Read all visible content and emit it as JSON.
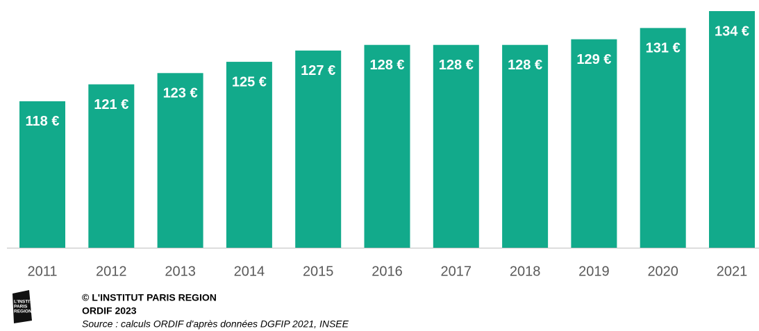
{
  "chart_data": {
    "type": "bar",
    "categories": [
      "2011",
      "2012",
      "2013",
      "2014",
      "2015",
      "2016",
      "2017",
      "2018",
      "2019",
      "2020",
      "2021"
    ],
    "values": [
      118,
      121,
      123,
      125,
      127,
      128,
      128,
      128,
      129,
      131,
      134
    ],
    "value_labels": [
      "118 €",
      "121 €",
      "123 €",
      "125 €",
      "127 €",
      "128 €",
      "128 €",
      "128 €",
      "129 €",
      "131 €",
      "134 €"
    ],
    "color": "#12aa8b",
    "ylim": [
      92,
      134
    ]
  },
  "footer": {
    "logo": [
      "L'INSTITUT",
      "PARIS",
      "REGION"
    ],
    "copyright": "© L'INSTITUT PARIS REGION",
    "producer": "ORDIF 2023",
    "source": "Source : calculs ORDIF d'après données DGFIP 2021, INSEE"
  }
}
